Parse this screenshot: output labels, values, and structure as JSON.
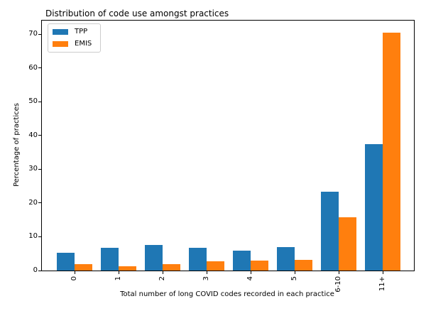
{
  "chart_data": {
    "type": "bar",
    "title": "Distribution of code use amongst practices",
    "xlabel": "Total number of long COVID codes recorded in each practice",
    "ylabel": "Percentage of practices",
    "categories": [
      "0",
      "1",
      "2",
      "3",
      "4",
      "5",
      "6-10",
      "11+"
    ],
    "series": [
      {
        "name": "TPP",
        "color": "#1f77b4",
        "values": [
          5.3,
          6.8,
          7.5,
          6.8,
          5.9,
          7.0,
          23.3,
          37.5
        ]
      },
      {
        "name": "EMIS",
        "color": "#ff7f0e",
        "values": [
          2.0,
          1.3,
          2.0,
          2.8,
          2.9,
          3.1,
          15.8,
          70.4
        ]
      }
    ],
    "ylim": [
      0,
      74
    ],
    "yticks": [
      0,
      10,
      20,
      30,
      40,
      50,
      60,
      70
    ],
    "x_tick_rotation": 90,
    "grid": false,
    "legend_position": "upper left",
    "axis_color": "#000000"
  }
}
